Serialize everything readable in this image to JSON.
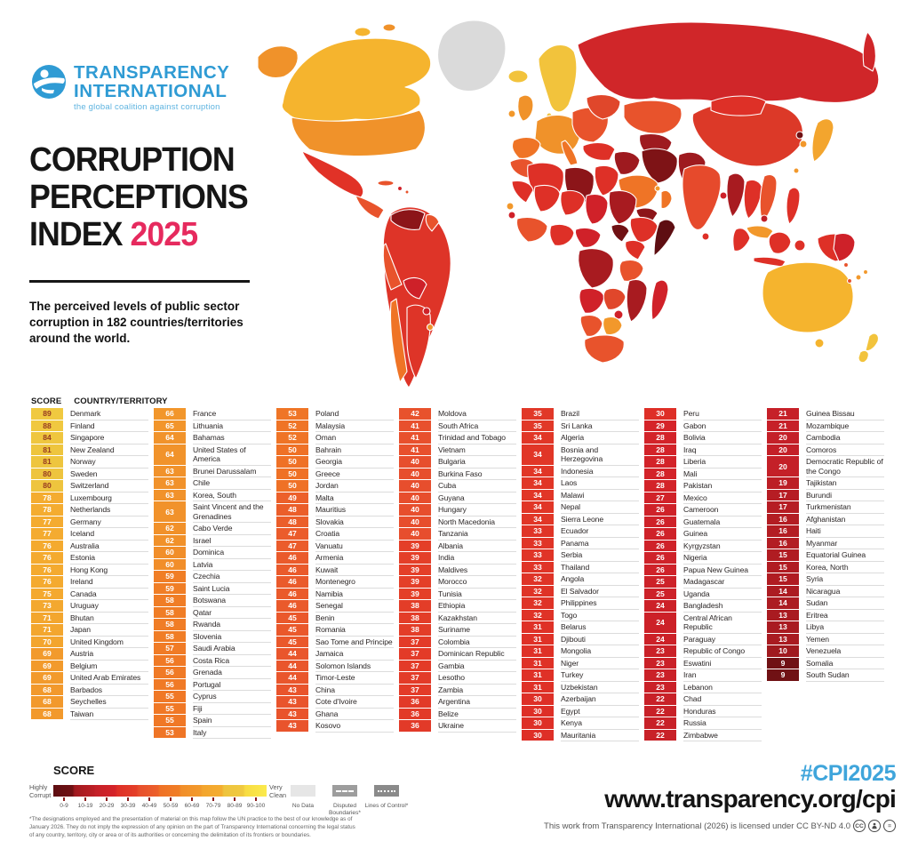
{
  "header": {
    "org_line1": "TRANSPARENCY",
    "org_line2": "INTERNATIONAL",
    "org_tagline": "the global coalition against corruption",
    "title_line1": "CORRUPTION",
    "title_line2": "PERCEPTIONS",
    "title_line3": "INDEX",
    "title_year": "2025",
    "subtitle": "The perceived levels of public sector corruption in 182 countries/territories around the world."
  },
  "table": {
    "score_header": "SCORE",
    "country_header": "COUNTRY/TERRITORY"
  },
  "legend": {
    "title": "SCORE",
    "left_label": "Highly Corrupt",
    "right_label": "Very Clean",
    "bins": [
      "0-9",
      "10-19",
      "20-29",
      "30-39",
      "40-49",
      "50-59",
      "60-69",
      "70-79",
      "80-89",
      "90-100"
    ],
    "no_data_label": "No Data",
    "disputed_label": "Disputed Boundaries*",
    "lines_label": "Lines of Control*",
    "footnote": "*The designations employed and the presentation of material on this map follow the UN practice to the best of our knowledge as of January 2026. They do not imply the expression of any opinion on the part of Transparency International concerning the legal status of any country, territory, city or area or of its authorities or concerning the delimitation of its frontiers or boundaries."
  },
  "footer": {
    "hashtag": "#CPI2025",
    "url": "www.transparency.org/cpi",
    "license": "This work from Transparency International (2026) is licensed under CC BY-ND 4.0"
  },
  "colors": {
    "logo_blue": "#2F9BD4",
    "tagline_blue": "#5FB4E0",
    "title_pink": "#E62A5E",
    "footer_blue": "#3FA5DB",
    "chip_text_dark": "#963A21",
    "chip_text_light": "#FFFFFF",
    "scale_stops": [
      [
        0,
        "#5E0E12"
      ],
      [
        9,
        "#701114"
      ],
      [
        10,
        "#A01A1F"
      ],
      [
        19,
        "#BC1E25"
      ],
      [
        20,
        "#C42028"
      ],
      [
        29,
        "#D52329"
      ],
      [
        30,
        "#DE2F27"
      ],
      [
        39,
        "#E43F28"
      ],
      [
        40,
        "#E74E2D"
      ],
      [
        49,
        "#EC602A"
      ],
      [
        50,
        "#EF7126"
      ],
      [
        59,
        "#F07E26"
      ],
      [
        60,
        "#F18E2A"
      ],
      [
        69,
        "#F29A2C"
      ],
      [
        70,
        "#F3A52E"
      ],
      [
        79,
        "#F4AD30"
      ],
      [
        80,
        "#EEC43E"
      ],
      [
        89,
        "#F0C940"
      ],
      [
        90,
        "#F8DC42"
      ],
      [
        100,
        "#FBEA4D"
      ]
    ]
  },
  "chart_data": {
    "type": "heatmap",
    "title": "Corruption Perceptions Index 2025",
    "value_label": "CPI score (0 = highly corrupt, 100 = very clean)",
    "score_range": [
      0,
      100
    ],
    "legend_position": "bottom-left",
    "columns_format": [
      "country",
      "score"
    ],
    "columns": [
      [
        [
          "Denmark",
          89
        ],
        [
          "Finland",
          88
        ],
        [
          "Singapore",
          84
        ],
        [
          "New Zealand",
          81
        ],
        [
          "Norway",
          81
        ],
        [
          "Sweden",
          80
        ],
        [
          "Switzerland",
          80
        ],
        [
          "Luxembourg",
          78
        ],
        [
          "Netherlands",
          78
        ],
        [
          "Germany",
          77
        ],
        [
          "Iceland",
          77
        ],
        [
          "Australia",
          76
        ],
        [
          "Estonia",
          76
        ],
        [
          "Hong Kong",
          76
        ],
        [
          "Ireland",
          76
        ],
        [
          "Canada",
          75
        ],
        [
          "Uruguay",
          73
        ],
        [
          "Bhutan",
          71
        ],
        [
          "Japan",
          71
        ],
        [
          "United Kingdom",
          70
        ],
        [
          "Austria",
          69
        ],
        [
          "Belgium",
          69
        ],
        [
          "United Arab Emirates",
          69
        ],
        [
          "Barbados",
          68
        ],
        [
          "Seychelles",
          68
        ],
        [
          "Taiwan",
          68
        ]
      ],
      [
        [
          "France",
          66
        ],
        [
          "Lithuania",
          65
        ],
        [
          "Bahamas",
          64
        ],
        [
          "United States of America",
          64
        ],
        [
          "Brunei Darussalam",
          63
        ],
        [
          "Chile",
          63
        ],
        [
          "Korea, South",
          63
        ],
        [
          "Saint Vincent and the Grenadines",
          63
        ],
        [
          "Cabo Verde",
          62
        ],
        [
          "Israel",
          62
        ],
        [
          "Dominica",
          60
        ],
        [
          "Latvia",
          60
        ],
        [
          "Czechia",
          59
        ],
        [
          "Saint Lucia",
          59
        ],
        [
          "Botswana",
          58
        ],
        [
          "Qatar",
          58
        ],
        [
          "Rwanda",
          58
        ],
        [
          "Slovenia",
          58
        ],
        [
          "Saudi Arabia",
          57
        ],
        [
          "Costa Rica",
          56
        ],
        [
          "Grenada",
          56
        ],
        [
          "Portugal",
          56
        ],
        [
          "Cyprus",
          55
        ],
        [
          "Fiji",
          55
        ],
        [
          "Spain",
          55
        ],
        [
          "Italy",
          53
        ]
      ],
      [
        [
          "Poland",
          53
        ],
        [
          "Malaysia",
          52
        ],
        [
          "Oman",
          52
        ],
        [
          "Bahrain",
          50
        ],
        [
          "Georgia",
          50
        ],
        [
          "Greece",
          50
        ],
        [
          "Jordan",
          50
        ],
        [
          "Malta",
          49
        ],
        [
          "Mauritius",
          48
        ],
        [
          "Slovakia",
          48
        ],
        [
          "Croatia",
          47
        ],
        [
          "Vanuatu",
          47
        ],
        [
          "Armenia",
          46
        ],
        [
          "Kuwait",
          46
        ],
        [
          "Montenegro",
          46
        ],
        [
          "Namibia",
          46
        ],
        [
          "Senegal",
          46
        ],
        [
          "Benin",
          45
        ],
        [
          "Romania",
          45
        ],
        [
          "Sao Tome and Principe",
          45
        ],
        [
          "Jamaica",
          44
        ],
        [
          "Solomon Islands",
          44
        ],
        [
          "Timor-Leste",
          44
        ],
        [
          "China",
          43
        ],
        [
          "Cote d'Ivoire",
          43
        ],
        [
          "Ghana",
          43
        ],
        [
          "Kosovo",
          43
        ]
      ],
      [
        [
          "Moldova",
          42
        ],
        [
          "South Africa",
          41
        ],
        [
          "Trinidad and Tobago",
          41
        ],
        [
          "Vietnam",
          41
        ],
        [
          "Bulgaria",
          40
        ],
        [
          "Burkina Faso",
          40
        ],
        [
          "Cuba",
          40
        ],
        [
          "Guyana",
          40
        ],
        [
          "Hungary",
          40
        ],
        [
          "North Macedonia",
          40
        ],
        [
          "Tanzania",
          40
        ],
        [
          "Albania",
          39
        ],
        [
          "India",
          39
        ],
        [
          "Maldives",
          39
        ],
        [
          "Morocco",
          39
        ],
        [
          "Tunisia",
          39
        ],
        [
          "Ethiopia",
          38
        ],
        [
          "Kazakhstan",
          38
        ],
        [
          "Suriname",
          38
        ],
        [
          "Colombia",
          37
        ],
        [
          "Dominican Republic",
          37
        ],
        [
          "Gambia",
          37
        ],
        [
          "Lesotho",
          37
        ],
        [
          "Zambia",
          37
        ],
        [
          "Argentina",
          36
        ],
        [
          "Belize",
          36
        ],
        [
          "Ukraine",
          36
        ]
      ],
      [
        [
          "Brazil",
          35
        ],
        [
          "Sri Lanka",
          35
        ],
        [
          "Algeria",
          34
        ],
        [
          "Bosnia and Herzegovina",
          34
        ],
        [
          "Indonesia",
          34
        ],
        [
          "Laos",
          34
        ],
        [
          "Malawi",
          34
        ],
        [
          "Nepal",
          34
        ],
        [
          "Sierra Leone",
          34
        ],
        [
          "Ecuador",
          33
        ],
        [
          "Panama",
          33
        ],
        [
          "Serbia",
          33
        ],
        [
          "Thailand",
          33
        ],
        [
          "Angola",
          32
        ],
        [
          "El Salvador",
          32
        ],
        [
          "Philippines",
          32
        ],
        [
          "Togo",
          32
        ],
        [
          "Belarus",
          31
        ],
        [
          "Djibouti",
          31
        ],
        [
          "Mongolia",
          31
        ],
        [
          "Niger",
          31
        ],
        [
          "Turkey",
          31
        ],
        [
          "Uzbekistan",
          31
        ],
        [
          "Azerbaijan",
          30
        ],
        [
          "Egypt",
          30
        ],
        [
          "Kenya",
          30
        ],
        [
          "Mauritania",
          30
        ]
      ],
      [
        [
          "Peru",
          30
        ],
        [
          "Gabon",
          29
        ],
        [
          "Bolivia",
          28
        ],
        [
          "Iraq",
          28
        ],
        [
          "Liberia",
          28
        ],
        [
          "Mali",
          28
        ],
        [
          "Pakistan",
          28
        ],
        [
          "Mexico",
          27
        ],
        [
          "Cameroon",
          26
        ],
        [
          "Guatemala",
          26
        ],
        [
          "Guinea",
          26
        ],
        [
          "Kyrgyzstan",
          26
        ],
        [
          "Nigeria",
          26
        ],
        [
          "Papua New Guinea",
          26
        ],
        [
          "Madagascar",
          25
        ],
        [
          "Uganda",
          25
        ],
        [
          "Bangladesh",
          24
        ],
        [
          "Central African Republic",
          24
        ],
        [
          "Paraguay",
          24
        ],
        [
          "Republic of Congo",
          23
        ],
        [
          "Eswatini",
          23
        ],
        [
          "Iran",
          23
        ],
        [
          "Lebanon",
          23
        ],
        [
          "Chad",
          22
        ],
        [
          "Honduras",
          22
        ],
        [
          "Russia",
          22
        ],
        [
          "Zimbabwe",
          22
        ]
      ],
      [
        [
          "Guinea Bissau",
          21
        ],
        [
          "Mozambique",
          21
        ],
        [
          "Cambodia",
          20
        ],
        [
          "Comoros",
          20
        ],
        [
          "Democratic Republic of the Congo",
          20
        ],
        [
          "Tajikistan",
          19
        ],
        [
          "Burundi",
          17
        ],
        [
          "Turkmenistan",
          17
        ],
        [
          "Afghanistan",
          16
        ],
        [
          "Haiti",
          16
        ],
        [
          "Myanmar",
          16
        ],
        [
          "Equatorial Guinea",
          15
        ],
        [
          "Korea, North",
          15
        ],
        [
          "Syria",
          15
        ],
        [
          "Nicaragua",
          14
        ],
        [
          "Sudan",
          14
        ],
        [
          "Eritrea",
          13
        ],
        [
          "Libya",
          13
        ],
        [
          "Yemen",
          13
        ],
        [
          "Venezuela",
          10
        ],
        [
          "Somalia",
          9
        ],
        [
          "South Sudan",
          9
        ]
      ]
    ]
  }
}
